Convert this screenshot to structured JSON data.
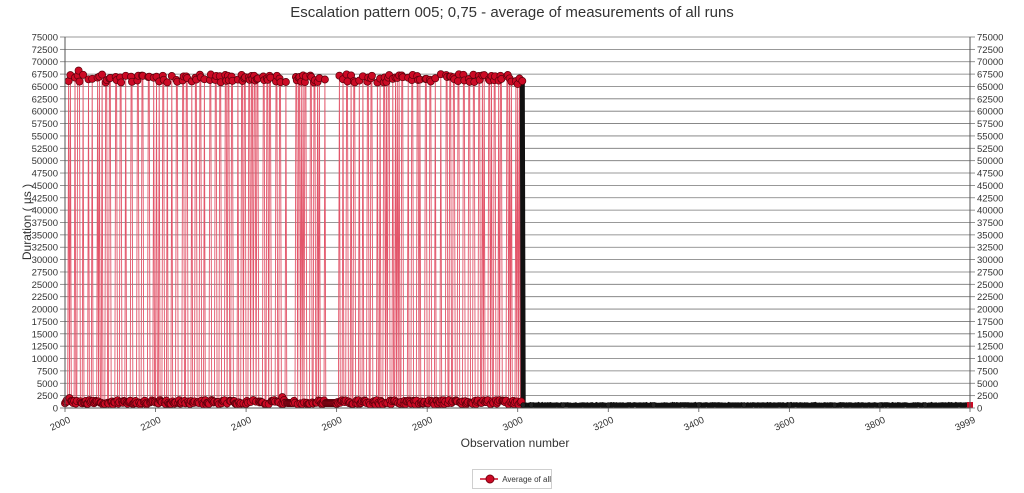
{
  "chart_data": {
    "type": "line",
    "title": "Escalation pattern 005; 0,75 - average of measurements of all runs",
    "xlabel": "Observation number",
    "ylabel": "Duration ( µs )",
    "xlim": [
      2000,
      3999
    ],
    "ylim": [
      0,
      75000
    ],
    "x_ticks": [
      "2000",
      "2200",
      "2400",
      "2600",
      "2800",
      "3000",
      "3200",
      "3400",
      "3600",
      "3800",
      "3999"
    ],
    "y_ticks": [
      "0",
      "2500",
      "5000",
      "7500",
      "10000",
      "12500",
      "15000",
      "17500",
      "20000",
      "22500",
      "25000",
      "27500",
      "30000",
      "32500",
      "35000",
      "37500",
      "40000",
      "42500",
      "45000",
      "47500",
      "50000",
      "52500",
      "55000",
      "57500",
      "60000",
      "62500",
      "65000",
      "67500",
      "70000",
      "72500",
      "75000"
    ],
    "grid": true,
    "legend_position": "bottom-center",
    "series": [
      {
        "name": "Average of all",
        "color": "#cc0a25",
        "line_color": "#e3556a",
        "marker": "circle",
        "pattern": {
          "active_range": [
            2000,
            3010
          ],
          "spike_value_typical": 67000,
          "spike_value_min": 64500,
          "spike_value_max": 71500,
          "baseline_value": 1000,
          "tail_range": [
            3010,
            3999
          ],
          "tail_value": 600,
          "notable_points": [
            {
              "x": 2845,
              "y": 71500
            },
            {
              "x": 2615,
              "y": 69800
            },
            {
              "x": 2030,
              "y": 68200
            },
            {
              "x": 2005,
              "y": 65000
            },
            {
              "x": 2605,
              "y": 65000
            },
            {
              "x": 3000,
              "y": 65500
            },
            {
              "x": 2755,
              "y": 2500
            },
            {
              "x": 2615,
              "y": 2300
            },
            {
              "x": 2480,
              "y": 2200
            },
            {
              "x": 2010,
              "y": 2000
            }
          ]
        }
      }
    ]
  }
}
